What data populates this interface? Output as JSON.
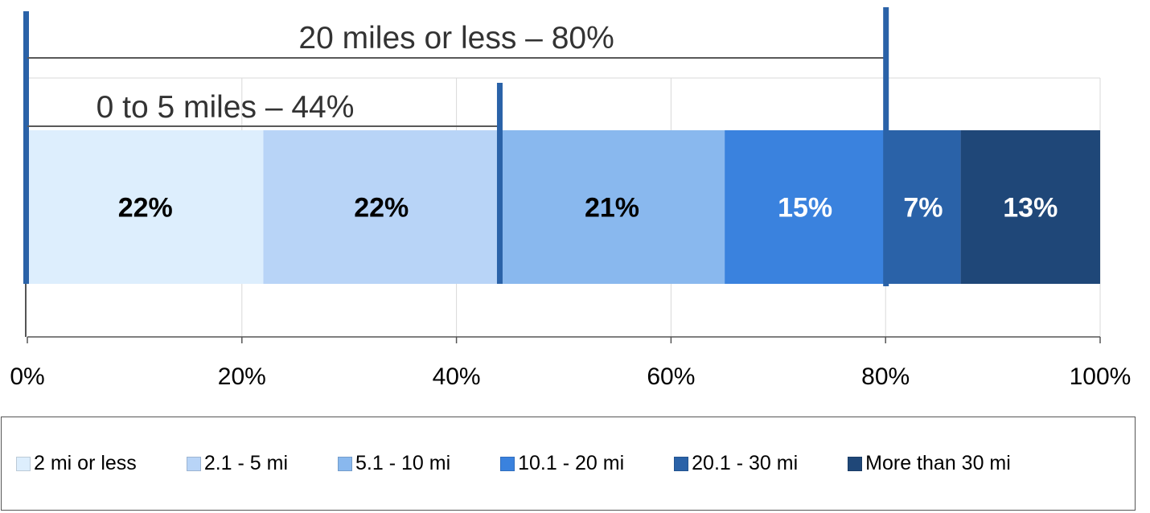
{
  "chart_data": {
    "type": "bar",
    "orientation": "horizontal",
    "stacked": true,
    "xlim": [
      0,
      100
    ],
    "x_ticks": [
      "0%",
      "20%",
      "40%",
      "60%",
      "80%",
      "100%"
    ],
    "grid": true,
    "legend_position": "bottom",
    "series": [
      {
        "name": "2 mi or less",
        "value": 22,
        "label": "22%",
        "color": "#ddeefd",
        "label_color": "#000000"
      },
      {
        "name": "2.1 - 5 mi",
        "value": 22,
        "label": "22%",
        "color": "#b8d4f7",
        "label_color": "#000000"
      },
      {
        "name": "5.1 - 10 mi",
        "value": 21,
        "label": "21%",
        "color": "#89b8ee",
        "label_color": "#000000"
      },
      {
        "name": "10.1 - 20 mi",
        "value": 15,
        "label": "15%",
        "color": "#3a82de",
        "label_color": "#ffffff"
      },
      {
        "name": "20.1 - 30 mi",
        "value": 7,
        "label": "7%",
        "color": "#2a62a8",
        "label_color": "#ffffff"
      },
      {
        "name": "More than 30 mi",
        "value": 13,
        "label": "13%",
        "color": "#1f4778",
        "label_color": "#ffffff"
      }
    ],
    "annotations": [
      {
        "text": "20 miles or less – 80%",
        "value": 80
      },
      {
        "text": "0 to 5 miles – 44%",
        "value": 44
      }
    ],
    "marker_color": "#2a62a8"
  }
}
